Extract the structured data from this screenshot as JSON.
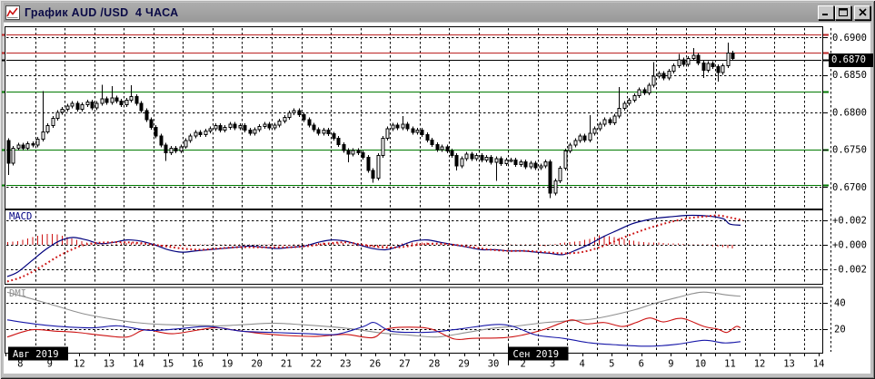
{
  "window": {
    "title": "График AUD /USD  4 ЧАСА"
  },
  "colors": {
    "candle": "#000000",
    "macd_line": "#00007d",
    "macd_signal": "#cc1111",
    "macd_histogram": "#cc1111",
    "adx": "#8f8f8f",
    "plus_di": "#1717a8",
    "minus_di": "#cc1111",
    "resistance": "#bb2222",
    "support": "#007a00",
    "current_price_line": "#000000",
    "grid": "#000000",
    "month_box_bg": "#000000",
    "month_box_fg": "#ffffff"
  },
  "chart_data": {
    "type": "candlestick+indicators",
    "title": "График AUD /USD  4 ЧАСА",
    "instrument": "AUD/USD",
    "timeframe_label": "4 ЧАСА",
    "price_panel": {
      "yticks": [
        {
          "label": "0.6900",
          "value": 0.69
        },
        {
          "label": "0.6850",
          "value": 0.685
        },
        {
          "label": "0.6800",
          "value": 0.68
        },
        {
          "label": "0.6750",
          "value": 0.675
        },
        {
          "label": "0.6700",
          "value": 0.67
        }
      ],
      "current_price": {
        "label": "0.6870",
        "value": 0.687
      },
      "hlines": [
        {
          "value": 0.6904,
          "color": "#bb2222",
          "role": "resistance"
        },
        {
          "value": 0.688,
          "color": "#bb2222",
          "role": "resistance"
        },
        {
          "value": 0.687,
          "color": "#000000",
          "role": "current-price"
        },
        {
          "value": 0.6828,
          "color": "#007a00",
          "role": "support"
        },
        {
          "value": 0.675,
          "color": "#007a00",
          "role": "support"
        },
        {
          "value": 0.6703,
          "color": "#007a00",
          "role": "support"
        }
      ],
      "first_open": 0.6762,
      "closes": [
        0.6732,
        0.6752,
        0.6756,
        0.6752,
        0.6758,
        0.6756,
        0.6764,
        0.6774,
        0.6782,
        0.6792,
        0.68,
        0.6804,
        0.6808,
        0.6812,
        0.6804,
        0.681,
        0.6814,
        0.6806,
        0.6812,
        0.6818,
        0.6813,
        0.6819,
        0.6815,
        0.681,
        0.6816,
        0.6821,
        0.6812,
        0.6802,
        0.679,
        0.678,
        0.6768,
        0.6756,
        0.6746,
        0.6752,
        0.6748,
        0.6754,
        0.6762,
        0.6768,
        0.6773,
        0.677,
        0.6775,
        0.6778,
        0.6782,
        0.6776,
        0.678,
        0.6784,
        0.6779,
        0.6782,
        0.6776,
        0.6772,
        0.6777,
        0.6781,
        0.6784,
        0.6779,
        0.6783,
        0.6788,
        0.6793,
        0.6799,
        0.6802,
        0.6797,
        0.679,
        0.6783,
        0.6777,
        0.6772,
        0.6776,
        0.6771,
        0.6765,
        0.6757,
        0.6749,
        0.6744,
        0.6749,
        0.6746,
        0.674,
        0.6722,
        0.6712,
        0.6742,
        0.6765,
        0.6778,
        0.6783,
        0.6779,
        0.6784,
        0.6778,
        0.6773,
        0.6776,
        0.677,
        0.6763,
        0.6757,
        0.675,
        0.6754,
        0.6748,
        0.6742,
        0.6728,
        0.6738,
        0.6744,
        0.6738,
        0.6742,
        0.6736,
        0.674,
        0.6733,
        0.6738,
        0.6731,
        0.6736,
        0.6736,
        0.673,
        0.6734,
        0.6727,
        0.6732,
        0.6726,
        0.6728,
        0.6734,
        0.6692,
        0.6708,
        0.6725,
        0.6748,
        0.6756,
        0.6762,
        0.6768,
        0.6763,
        0.6772,
        0.6778,
        0.6784,
        0.679,
        0.6786,
        0.6795,
        0.6805,
        0.6812,
        0.6816,
        0.6822,
        0.683,
        0.6826,
        0.6836,
        0.6848,
        0.6852,
        0.6846,
        0.6855,
        0.6862,
        0.687,
        0.6864,
        0.6872,
        0.6876,
        0.6866,
        0.6856,
        0.6865,
        0.6861,
        0.6853,
        0.6862,
        0.6879,
        0.6872
      ],
      "extremes": {
        "0": [
          null,
          0.6716
        ],
        "7": [
          0.6828,
          null
        ],
        "19": [
          0.6837,
          null
        ],
        "21": [
          0.6835,
          null
        ],
        "25": [
          0.6836,
          null
        ],
        "32": [
          null,
          0.6735
        ],
        "69": [
          null,
          0.6733
        ],
        "74": [
          null,
          0.6706
        ],
        "80": [
          0.6795,
          null
        ],
        "91": [
          null,
          0.6722
        ],
        "99": [
          null,
          0.6708
        ],
        "110": [
          null,
          0.6685
        ],
        "118": [
          0.6796,
          null
        ],
        "124": [
          0.6834,
          null
        ],
        "131": [
          0.6867,
          null
        ],
        "136": [
          0.6878,
          null
        ],
        "139": [
          0.6886,
          null
        ],
        "141": [
          null,
          0.6846
        ],
        "144": [
          null,
          0.6841
        ],
        "146": [
          0.6893,
          null
        ]
      }
    },
    "macd_panel": {
      "label": "MACD",
      "yticks": [
        {
          "label": "+0.002",
          "value": 0.002
        },
        {
          "label": "+0.000",
          "value": 0.0
        },
        {
          "label": "-0.002",
          "value": -0.002
        }
      ],
      "macd": [
        [
          8,
          -0.0026
        ],
        [
          20,
          -0.0022
        ],
        [
          35,
          -0.0013
        ],
        [
          50,
          -0.0004
        ],
        [
          65,
          0.0003
        ],
        [
          80,
          0.0006
        ],
        [
          95,
          0.0004
        ],
        [
          110,
          0.0001
        ],
        [
          125,
          0.0002
        ],
        [
          140,
          0.0004
        ],
        [
          155,
          0.0003
        ],
        [
          170,
          0.0
        ],
        [
          185,
          -0.0004
        ],
        [
          200,
          -0.0006
        ],
        [
          215,
          -0.0005
        ],
        [
          230,
          -0.0004
        ],
        [
          245,
          -0.0003
        ],
        [
          260,
          -0.0002
        ],
        [
          275,
          -0.0001
        ],
        [
          290,
          -0.0002
        ],
        [
          305,
          -0.0003
        ],
        [
          320,
          -0.0002
        ],
        [
          335,
          -0.0001
        ],
        [
          350,
          0.0002
        ],
        [
          365,
          0.0004
        ],
        [
          380,
          0.0003
        ],
        [
          395,
          0.0
        ],
        [
          410,
          -0.0003
        ],
        [
          425,
          -0.0004
        ],
        [
          440,
          -0.0001
        ],
        [
          455,
          0.0003
        ],
        [
          470,
          0.0004
        ],
        [
          485,
          0.0002
        ],
        [
          500,
          0.0
        ],
        [
          515,
          -0.0002
        ],
        [
          530,
          -0.0004
        ],
        [
          545,
          -0.0004
        ],
        [
          560,
          -0.0005
        ],
        [
          575,
          -0.0005
        ],
        [
          590,
          -0.0006
        ],
        [
          605,
          -0.0007
        ],
        [
          620,
          -0.0008
        ],
        [
          635,
          -0.0004
        ],
        [
          650,
          0.0001
        ],
        [
          665,
          0.0007
        ],
        [
          680,
          0.0012
        ],
        [
          695,
          0.0017
        ],
        [
          710,
          0.002
        ],
        [
          725,
          0.0022
        ],
        [
          740,
          0.0023
        ],
        [
          755,
          0.0024
        ],
        [
          770,
          0.0024
        ],
        [
          785,
          0.0023
        ],
        [
          797,
          0.0021
        ],
        [
          803,
          0.0017
        ],
        [
          815,
          0.0016
        ]
      ],
      "signal": [
        [
          8,
          -0.003
        ],
        [
          25,
          -0.0026
        ],
        [
          45,
          -0.0018
        ],
        [
          65,
          -0.0009
        ],
        [
          85,
          -0.0002
        ],
        [
          100,
          0.0001
        ],
        [
          120,
          0.0002
        ],
        [
          140,
          0.0002
        ],
        [
          160,
          0.0001
        ],
        [
          180,
          -0.0001
        ],
        [
          200,
          -0.0003
        ],
        [
          220,
          -0.0004
        ],
        [
          240,
          -0.0003
        ],
        [
          260,
          -0.0002
        ],
        [
          280,
          -0.0002
        ],
        [
          300,
          -0.0002
        ],
        [
          320,
          -0.0002
        ],
        [
          340,
          -0.0001
        ],
        [
          360,
          0.0001
        ],
        [
          380,
          0.0002
        ],
        [
          400,
          0.0
        ],
        [
          420,
          -0.0002
        ],
        [
          440,
          -0.0002
        ],
        [
          460,
          0.0
        ],
        [
          480,
          0.0001
        ],
        [
          500,
          0.0
        ],
        [
          520,
          -0.0002
        ],
        [
          540,
          -0.0004
        ],
        [
          560,
          -0.0005
        ],
        [
          580,
          -0.0005
        ],
        [
          600,
          -0.0006
        ],
        [
          620,
          -0.0007
        ],
        [
          640,
          -0.0006
        ],
        [
          660,
          -0.0002
        ],
        [
          680,
          0.0004
        ],
        [
          700,
          0.001
        ],
        [
          720,
          0.0015
        ],
        [
          740,
          0.0019
        ],
        [
          760,
          0.0022
        ],
        [
          775,
          0.0023
        ],
        [
          790,
          0.0024
        ],
        [
          805,
          0.0022
        ],
        [
          818,
          0.002
        ]
      ],
      "histogram": [
        [
          8,
          0.0002
        ],
        [
          20,
          0.0003
        ],
        [
          30,
          0.0005
        ],
        [
          40,
          0.0007
        ],
        [
          50,
          0.0009
        ],
        [
          60,
          0.0009
        ],
        [
          70,
          0.0007
        ],
        [
          80,
          0.0005
        ],
        [
          90,
          0.0003
        ],
        [
          100,
          0.0001
        ],
        [
          115,
          0.0
        ],
        [
          130,
          0.0001
        ],
        [
          145,
          0.0002
        ],
        [
          160,
          0.0001
        ],
        [
          175,
          -0.0001
        ],
        [
          190,
          -0.0001
        ],
        [
          210,
          -0.0001
        ],
        [
          230,
          0.0
        ],
        [
          250,
          0.0
        ],
        [
          270,
          0.0
        ],
        [
          290,
          0.0
        ],
        [
          310,
          -0.0001
        ],
        [
          330,
          0.0
        ],
        [
          345,
          0.0001
        ],
        [
          360,
          0.0002
        ],
        [
          375,
          0.0002
        ],
        [
          390,
          -0.0001
        ],
        [
          405,
          -0.0002
        ],
        [
          420,
          -0.0002
        ],
        [
          435,
          0.0
        ],
        [
          450,
          0.0002
        ],
        [
          465,
          0.0002
        ],
        [
          480,
          0.0001
        ],
        [
          495,
          0.0
        ],
        [
          510,
          0.0
        ],
        [
          525,
          -0.0001
        ],
        [
          540,
          0.0
        ],
        [
          555,
          0.0
        ],
        [
          570,
          0.0
        ],
        [
          585,
          0.0
        ],
        [
          600,
          -0.0001
        ],
        [
          612,
          0.0001
        ],
        [
          625,
          0.0002
        ],
        [
          638,
          0.0003
        ],
        [
          650,
          0.0005
        ],
        [
          660,
          0.0008
        ],
        [
          670,
          0.0007
        ],
        [
          680,
          0.0006
        ],
        [
          690,
          0.0004
        ],
        [
          700,
          0.0003
        ],
        [
          712,
          0.0002
        ],
        [
          725,
          0.0002
        ],
        [
          738,
          0.0001
        ],
        [
          750,
          0.0001
        ],
        [
          762,
          0.0
        ],
        [
          775,
          0.0
        ],
        [
          785,
          -0.0001
        ],
        [
          795,
          -0.0002
        ],
        [
          805,
          -0.0003
        ],
        [
          815,
          -0.0002
        ]
      ]
    },
    "dmi_panel": {
      "label": "DMI",
      "yticks": [
        {
          "label": "40",
          "value": 40
        },
        {
          "label": "20",
          "value": 20
        }
      ],
      "adx": [
        [
          8,
          48
        ],
        [
          30,
          44
        ],
        [
          60,
          38
        ],
        [
          90,
          32
        ],
        [
          120,
          28
        ],
        [
          150,
          25
        ],
        [
          180,
          23.5
        ],
        [
          210,
          23
        ],
        [
          240,
          22.5
        ],
        [
          270,
          23.5
        ],
        [
          300,
          24.5
        ],
        [
          330,
          23.5
        ],
        [
          360,
          22
        ],
        [
          390,
          20
        ],
        [
          420,
          17
        ],
        [
          450,
          15.5
        ],
        [
          480,
          14
        ],
        [
          510,
          17
        ],
        [
          540,
          20.5
        ],
        [
          570,
          22.5
        ],
        [
          600,
          25
        ],
        [
          630,
          26.5
        ],
        [
          650,
          27.5
        ],
        [
          670,
          30
        ],
        [
          700,
          35
        ],
        [
          720,
          39.5
        ],
        [
          745,
          44
        ],
        [
          770,
          48
        ],
        [
          785,
          47.5
        ],
        [
          800,
          46
        ],
        [
          815,
          45
        ]
      ],
      "plus_di": [
        [
          8,
          27
        ],
        [
          50,
          23
        ],
        [
          100,
          21
        ],
        [
          130,
          22.5
        ],
        [
          165,
          19
        ],
        [
          200,
          20.5
        ],
        [
          230,
          22
        ],
        [
          265,
          18.5
        ],
        [
          300,
          17.5
        ],
        [
          340,
          16.5
        ],
        [
          370,
          16
        ],
        [
          400,
          22
        ],
        [
          412,
          25
        ],
        [
          430,
          18.5
        ],
        [
          460,
          17.5
        ],
        [
          480,
          18
        ],
        [
          510,
          20.5
        ],
        [
          545,
          23.5
        ],
        [
          565,
          22
        ],
        [
          590,
          15.5
        ],
        [
          620,
          13
        ],
        [
          650,
          9.5
        ],
        [
          680,
          8
        ],
        [
          715,
          7
        ],
        [
          745,
          8.5
        ],
        [
          775,
          11.5
        ],
        [
          797,
          9.5
        ],
        [
          815,
          10.5
        ]
      ],
      "minus_di": [
        [
          8,
          14
        ],
        [
          35,
          19.5
        ],
        [
          60,
          18.5
        ],
        [
          85,
          17.5
        ],
        [
          110,
          15.5
        ],
        [
          140,
          14
        ],
        [
          160,
          19.5
        ],
        [
          190,
          16.5
        ],
        [
          235,
          21
        ],
        [
          260,
          19
        ],
        [
          290,
          16.5
        ],
        [
          320,
          15
        ],
        [
          350,
          14.5
        ],
        [
          380,
          16
        ],
        [
          410,
          13.5
        ],
        [
          425,
          20
        ],
        [
          450,
          21.5
        ],
        [
          475,
          20
        ],
        [
          500,
          12.5
        ],
        [
          520,
          13
        ],
        [
          555,
          13.5
        ],
        [
          575,
          15.5
        ],
        [
          600,
          20
        ],
        [
          615,
          24
        ],
        [
          630,
          27
        ],
        [
          645,
          24
        ],
        [
          665,
          25
        ],
        [
          685,
          22
        ],
        [
          700,
          25
        ],
        [
          715,
          28.5
        ],
        [
          730,
          25.5
        ],
        [
          745,
          28
        ],
        [
          755,
          27.5
        ],
        [
          775,
          22
        ],
        [
          790,
          20
        ],
        [
          800,
          17.5
        ],
        [
          810,
          22
        ],
        [
          815,
          21
        ]
      ]
    },
    "x_axis": {
      "dates": [
        "8",
        "9",
        "12",
        "13",
        "14",
        "15",
        "16",
        "19",
        "20",
        "21",
        "22",
        "23",
        "26",
        "27",
        "28",
        "29",
        "30",
        "2",
        "3",
        "4",
        "5",
        "6",
        "9",
        "10",
        "11",
        "12",
        "13",
        "14"
      ],
      "months": [
        {
          "label": "Авг 2019",
          "day_index": 0
        },
        {
          "label": "Сен 2019",
          "day_index": 17
        }
      ]
    }
  }
}
